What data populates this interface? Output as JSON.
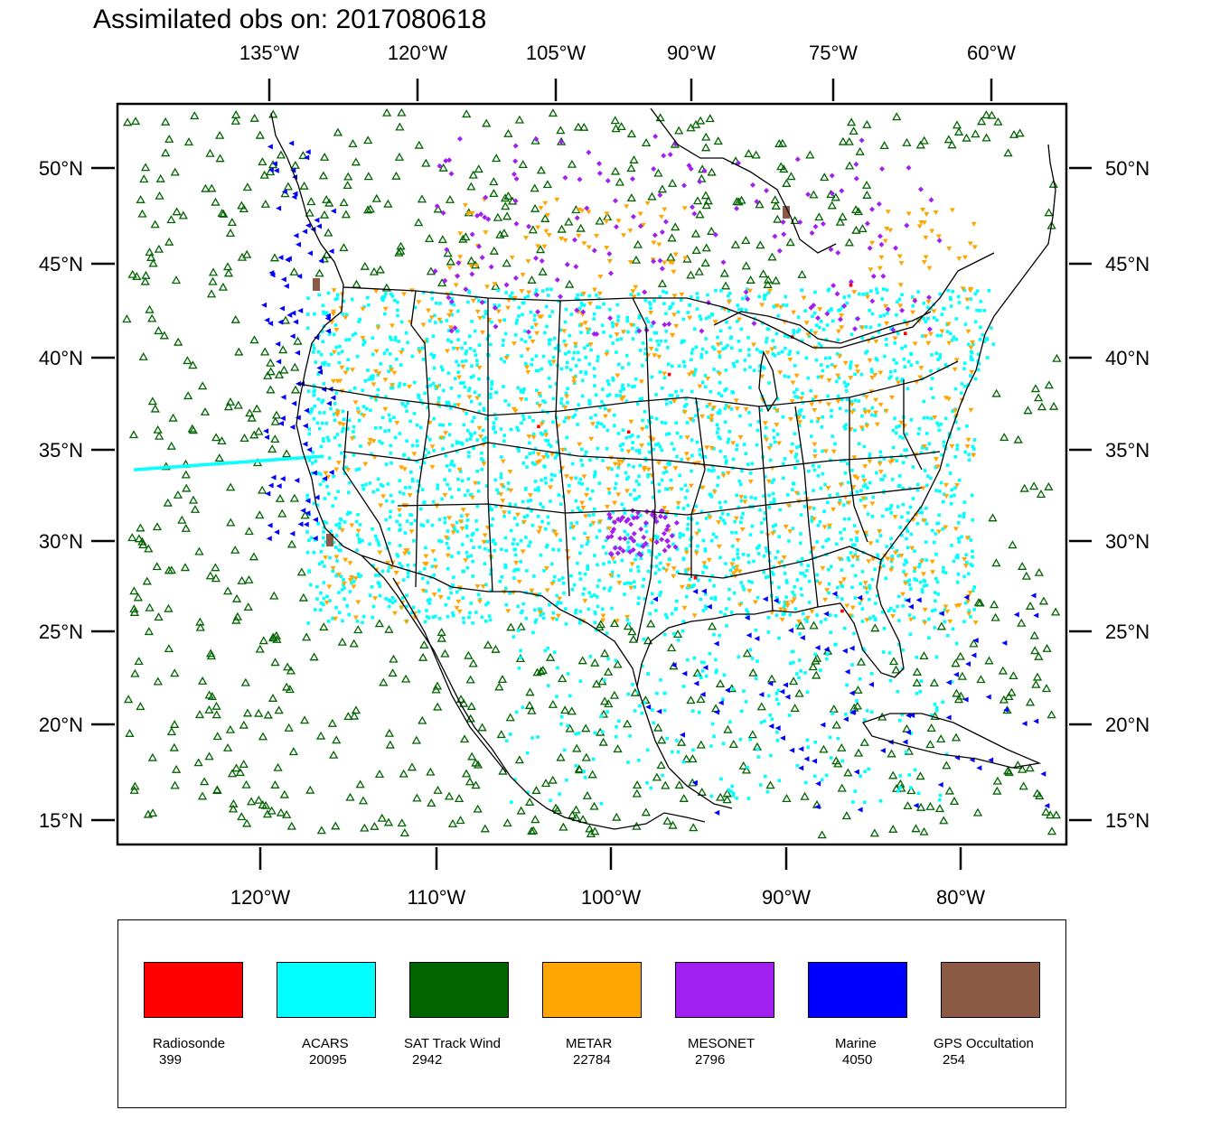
{
  "title": "Assimilated obs on: 2017080618",
  "axes": {
    "top_lon_labels": [
      "135°W",
      "120°W",
      "105°W",
      "90°W",
      "75°W",
      "60°W"
    ],
    "bottom_lon_labels": [
      "120°W",
      "110°W",
      "100°W",
      "90°W",
      "80°W"
    ],
    "lat_labels": [
      "50°N",
      "45°N",
      "40°N",
      "35°N",
      "30°N",
      "25°N",
      "20°N",
      "15°N"
    ]
  },
  "legend": [
    {
      "name": "Radiosonde",
      "count": "399",
      "color": "#ff0000"
    },
    {
      "name": "ACARS",
      "count": "20095",
      "color": "#00ffff"
    },
    {
      "name": "SAT Track Wind",
      "count": "2942",
      "color": "#006400"
    },
    {
      "name": "METAR",
      "count": "22784",
      "color": "#ffa500"
    },
    {
      "name": "MESONET",
      "count": "2796",
      "color": "#a020f0"
    },
    {
      "name": "Marine",
      "count": "4050",
      "color": "#0000ff"
    },
    {
      "name": "GPS Occultation",
      "count": "254",
      "color": "#8b5a44"
    }
  ]
}
